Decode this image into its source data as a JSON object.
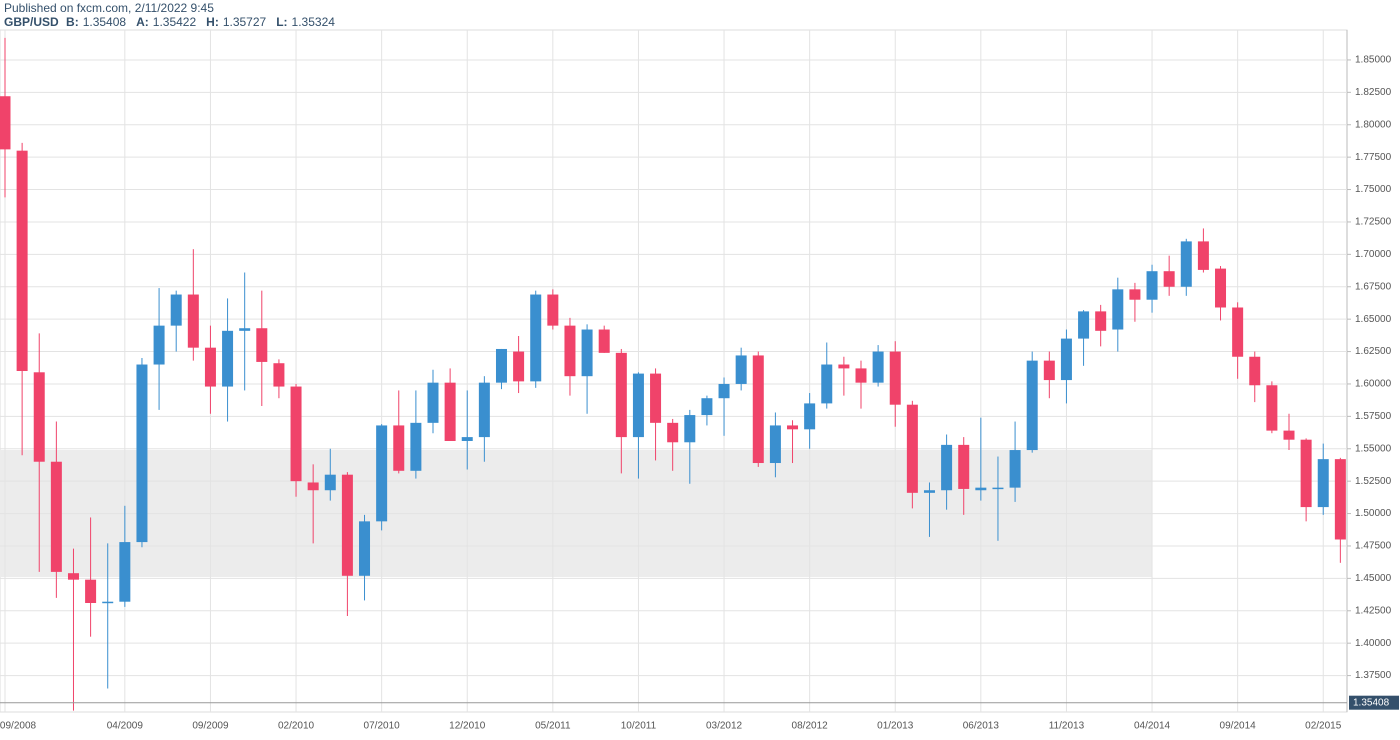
{
  "header": {
    "published": "Published on fxcm.com, 2/11/2022 9:45",
    "symbol": "GBP/USD",
    "quotes": [
      {
        "label": "B:",
        "value": "1.35408"
      },
      {
        "label": "A:",
        "value": "1.35422"
      },
      {
        "label": "H:",
        "value": "1.35727"
      },
      {
        "label": "L:",
        "value": "1.35324"
      }
    ]
  },
  "chart_data": {
    "type": "candlestick",
    "categories": [
      "09/2008",
      null,
      null,
      null,
      null,
      null,
      null,
      "04/2009",
      null,
      null,
      null,
      null,
      "09/2009",
      null,
      null,
      null,
      null,
      "02/2010",
      null,
      null,
      null,
      null,
      "07/2010",
      null,
      null,
      null,
      null,
      "12/2010",
      null,
      null,
      null,
      null,
      "05/2011",
      null,
      null,
      null,
      null,
      "10/2011",
      null,
      null,
      null,
      null,
      "03/2012",
      null,
      null,
      null,
      null,
      "08/2012",
      null,
      null,
      null,
      null,
      "01/2013",
      null,
      null,
      null,
      null,
      "06/2013",
      null,
      null,
      null,
      null,
      "11/2013",
      null,
      null,
      null,
      null,
      "04/2014",
      null,
      null,
      null,
      null,
      "09/2014",
      null,
      null,
      null,
      null,
      "02/2015",
      null
    ],
    "open": [
      1.822,
      1.78,
      1.609,
      1.54,
      1.454,
      1.449,
      1.431,
      1.432,
      1.478,
      1.615,
      1.645,
      1.669,
      1.628,
      1.598,
      1.641,
      1.643,
      1.616,
      1.598,
      1.524,
      1.518,
      1.53,
      1.452,
      1.494,
      1.568,
      1.533,
      1.57,
      1.601,
      1.556,
      1.559,
      1.601,
      1.625,
      1.602,
      1.669,
      1.645,
      1.606,
      1.642,
      1.624,
      1.559,
      1.608,
      1.57,
      1.555,
      1.576,
      1.589,
      1.6,
      1.622,
      1.539,
      1.568,
      1.565,
      1.585,
      1.615,
      1.612,
      1.601,
      1.625,
      1.584,
      1.516,
      1.518,
      1.553,
      1.518,
      1.519,
      1.52,
      1.549,
      1.618,
      1.603,
      1.635,
      1.656,
      1.642,
      1.673,
      1.665,
      1.687,
      1.675,
      1.71,
      1.689,
      1.659,
      1.621,
      1.599,
      1.564,
      1.557,
      1.505,
      1.542
    ],
    "high": [
      1.867,
      1.786,
      1.639,
      1.571,
      1.473,
      1.497,
      1.477,
      1.506,
      1.62,
      1.674,
      1.672,
      1.704,
      1.645,
      1.666,
      1.686,
      1.672,
      1.619,
      1.6,
      1.538,
      1.55,
      1.532,
      1.499,
      1.569,
      1.595,
      1.595,
      1.611,
      1.612,
      1.595,
      1.606,
      1.627,
      1.637,
      1.672,
      1.673,
      1.651,
      1.646,
      1.645,
      1.627,
      1.609,
      1.612,
      1.573,
      1.58,
      1.591,
      1.605,
      1.628,
      1.625,
      1.578,
      1.572,
      1.593,
      1.632,
      1.621,
      1.618,
      1.63,
      1.633,
      1.587,
      1.524,
      1.561,
      1.559,
      1.574,
      1.544,
      1.571,
      1.625,
      1.625,
      1.642,
      1.657,
      1.661,
      1.682,
      1.678,
      1.692,
      1.699,
      1.712,
      1.72,
      1.691,
      1.663,
      1.625,
      1.602,
      1.577,
      1.558,
      1.554,
      1.543
    ],
    "low": [
      1.744,
      1.545,
      1.455,
      1.435,
      1.348,
      1.405,
      1.365,
      1.428,
      1.474,
      1.58,
      1.625,
      1.618,
      1.577,
      1.571,
      1.595,
      1.583,
      1.589,
      1.513,
      1.477,
      1.51,
      1.421,
      1.433,
      1.487,
      1.531,
      1.527,
      1.562,
      1.556,
      1.534,
      1.54,
      1.596,
      1.593,
      1.597,
      1.642,
      1.591,
      1.577,
      1.624,
      1.531,
      1.527,
      1.541,
      1.533,
      1.523,
      1.568,
      1.56,
      1.595,
      1.536,
      1.528,
      1.539,
      1.55,
      1.581,
      1.591,
      1.581,
      1.598,
      1.567,
      1.504,
      1.482,
      1.503,
      1.499,
      1.51,
      1.479,
      1.509,
      1.547,
      1.589,
      1.585,
      1.614,
      1.629,
      1.625,
      1.648,
      1.655,
      1.668,
      1.668,
      1.686,
      1.649,
      1.604,
      1.586,
      1.562,
      1.549,
      1.494,
      1.499,
      1.462
    ],
    "close": [
      1.781,
      1.61,
      1.54,
      1.455,
      1.449,
      1.431,
      1.432,
      1.478,
      1.615,
      1.645,
      1.669,
      1.628,
      1.598,
      1.641,
      1.643,
      1.617,
      1.598,
      1.525,
      1.518,
      1.53,
      1.452,
      1.494,
      1.568,
      1.533,
      1.57,
      1.601,
      1.556,
      1.559,
      1.601,
      1.627,
      1.602,
      1.669,
      1.645,
      1.606,
      1.642,
      1.624,
      1.559,
      1.608,
      1.57,
      1.555,
      1.576,
      1.589,
      1.6,
      1.622,
      1.539,
      1.568,
      1.565,
      1.585,
      1.615,
      1.612,
      1.601,
      1.625,
      1.584,
      1.516,
      1.518,
      1.553,
      1.519,
      1.52,
      1.52,
      1.549,
      1.618,
      1.603,
      1.635,
      1.656,
      1.641,
      1.673,
      1.665,
      1.687,
      1.675,
      1.71,
      1.688,
      1.659,
      1.621,
      1.599,
      1.564,
      1.557,
      1.505,
      1.542,
      1.48
    ],
    "up_color": "#3a8fcf",
    "down_color": "#f0436a",
    "ylim": [
      1.3469,
      1.8731
    ],
    "yticks": [
      {
        "value": 1.375,
        "label": "1.37500"
      },
      {
        "value": 1.4,
        "label": "1.40000"
      },
      {
        "value": 1.425,
        "label": "1.42500"
      },
      {
        "value": 1.45,
        "label": "1.45000"
      },
      {
        "value": 1.475,
        "label": "1.47500"
      },
      {
        "value": 1.5,
        "label": "1.50000"
      },
      {
        "value": 1.525,
        "label": "1.52500"
      },
      {
        "value": 1.55,
        "label": "1.55000"
      },
      {
        "value": 1.575,
        "label": "1.57500"
      },
      {
        "value": 1.6,
        "label": "1.60000"
      },
      {
        "value": 1.625,
        "label": "1.62500"
      },
      {
        "value": 1.65,
        "label": "1.65000"
      },
      {
        "value": 1.675,
        "label": "1.67500"
      },
      {
        "value": 1.7,
        "label": "1.70000"
      },
      {
        "value": 1.725,
        "label": "1.72500"
      },
      {
        "value": 1.75,
        "label": "1.75000"
      },
      {
        "value": 1.775,
        "label": "1.77500"
      },
      {
        "value": 1.8,
        "label": "1.80000"
      },
      {
        "value": 1.825,
        "label": "1.82500"
      },
      {
        "value": 1.85,
        "label": "1.85000"
      }
    ],
    "last_price": 1.35408,
    "grid": true
  }
}
